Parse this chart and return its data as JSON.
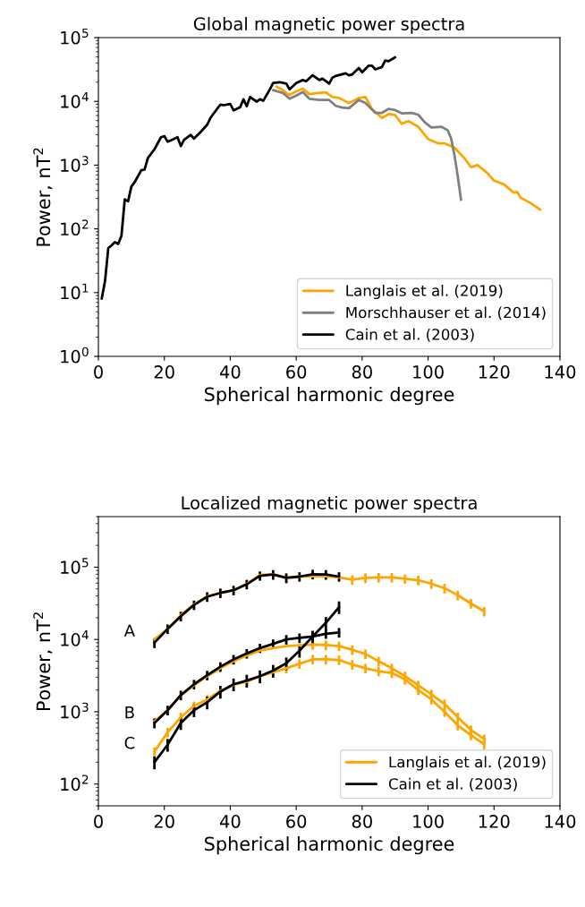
{
  "chart_data": [
    {
      "type": "line",
      "title": "Global magnetic power spectra",
      "xlabel": "Spherical harmonic degree",
      "ylabel": "Power, nT$^{2}$",
      "log": true,
      "legend": "bottom right",
      "xlim": [
        0,
        140
      ],
      "xticks": [
        0,
        20,
        40,
        60,
        80,
        100,
        120,
        140
      ],
      "ylim": [
        1,
        100000
      ],
      "yticks": [
        {
          "value": 1,
          "label": "10$^{0}$"
        },
        {
          "value": 10,
          "label": "10$^{1}$"
        },
        {
          "value": 100,
          "label": "10$^{2}$"
        },
        {
          "value": 1000,
          "label": "10$^{3}$"
        },
        {
          "value": 10000,
          "label": "10$^{4}$"
        },
        {
          "value": 100000,
          "label": "10$^{5}$"
        }
      ],
      "series": [
        {
          "name": "Langlais et al. (2019)",
          "color": "#ffa500",
          "x": [
            54,
            56,
            57,
            58,
            60,
            62,
            64,
            66,
            69,
            71,
            73,
            76,
            79,
            81,
            83,
            86,
            88,
            90,
            92,
            94,
            97,
            100,
            103,
            105,
            108,
            111,
            113,
            115,
            118,
            120,
            123,
            126,
            127,
            128,
            131,
            134
          ],
          "values": [
            17000,
            15000,
            13500,
            12600,
            14400,
            15800,
            13000,
            13400,
            13800,
            11700,
            11300,
            9400,
            11300,
            11700,
            7600,
            5500,
            6300,
            6100,
            4450,
            4900,
            4000,
            2570,
            2200,
            2200,
            1870,
            1290,
            930,
            1000,
            750,
            570,
            500,
            370,
            380,
            310,
            255,
            200
          ]
        },
        {
          "name": "Morschhauser et al. (2014)",
          "color": "#808080",
          "x": [
            53,
            56,
            58,
            60,
            62,
            64,
            67,
            70,
            72,
            74,
            76,
            79,
            81,
            84,
            86,
            88,
            90,
            92,
            95,
            97,
            99,
            101,
            104,
            106,
            107,
            108,
            109,
            110
          ],
          "values": [
            15000,
            13500,
            11000,
            12300,
            14000,
            11000,
            10500,
            10500,
            8500,
            8000,
            7800,
            10500,
            9400,
            6600,
            6600,
            7600,
            7300,
            6500,
            6600,
            6200,
            4700,
            3900,
            4000,
            3500,
            2600,
            1440,
            670,
            285
          ]
        },
        {
          "name": "Cain et al. (2003)",
          "color": "#000000",
          "x": [
            1,
            2,
            3,
            4,
            5,
            6,
            7,
            8,
            9,
            10,
            11,
            13,
            14,
            15,
            17,
            19,
            20,
            21,
            22,
            24,
            25,
            26,
            28,
            29,
            31,
            33,
            34,
            35,
            37,
            38,
            40,
            41,
            43,
            44,
            45,
            46,
            48,
            49,
            50,
            52,
            53,
            55,
            57,
            58,
            60,
            62,
            63,
            65,
            67,
            68,
            70,
            71,
            72,
            75,
            76,
            77,
            79,
            80,
            82,
            83,
            84,
            86,
            87,
            88,
            90
          ],
          "values": [
            8,
            15,
            50,
            55,
            62,
            58,
            78,
            290,
            270,
            460,
            540,
            830,
            850,
            1290,
            1770,
            2740,
            2850,
            2330,
            2450,
            2740,
            1990,
            2500,
            2970,
            2600,
            3300,
            4300,
            5500,
            6500,
            8900,
            8700,
            9100,
            7200,
            8100,
            10800,
            8400,
            11700,
            9900,
            10800,
            10200,
            15400,
            19400,
            20000,
            19000,
            15400,
            19400,
            21600,
            20700,
            25700,
            21600,
            22700,
            19000,
            23600,
            25000,
            27600,
            25600,
            26500,
            33300,
            28600,
            36300,
            36300,
            31700,
            34500,
            43600,
            42600,
            49000
          ]
        }
      ]
    },
    {
      "type": "line",
      "title": "Localized magnetic power spectra",
      "xlabel": "Spherical harmonic degree",
      "ylabel": "Power, nT$^{2}$",
      "log": true,
      "legend": "bottom right",
      "xlim": [
        0,
        140
      ],
      "xticks": [
        0,
        20,
        40,
        60,
        80,
        100,
        120,
        140
      ],
      "ylim": [
        50,
        500000
      ],
      "yticks": [
        {
          "value": 100,
          "label": "10$^{2}$"
        },
        {
          "value": 1000,
          "label": "10$^{3}$"
        },
        {
          "value": 10000,
          "label": "10$^{4}$"
        },
        {
          "value": 100000,
          "label": "10$^{5}$"
        }
      ],
      "annotations": [
        "A",
        "B",
        "C"
      ],
      "series": [
        {
          "name": "Langlais et al. (2019)",
          "color": "#ffa500",
          "x": [
            17,
            21,
            25,
            29,
            33,
            37,
            41,
            45,
            49,
            53,
            57,
            61,
            65,
            69,
            73,
            77,
            81,
            85,
            89,
            93,
            97,
            101,
            105,
            109,
            113,
            117
          ],
          "values": [
            10000,
            14000,
            21800,
            30500,
            39600,
            44000,
            48000,
            59000,
            78000,
            80000,
            71000,
            74000,
            75000,
            75000,
            72000,
            67000,
            71000,
            72000,
            72000,
            69000,
            66000,
            59000,
            51000,
            41000,
            31500,
            24500
          ],
          "errors": [
            null,
            null,
            null,
            null,
            null,
            null,
            null,
            null,
            null,
            null,
            null,
            null,
            null,
            null,
            null,
            10000,
            11000,
            11000,
            11000,
            10000,
            9900,
            8900,
            7700,
            6200,
            4700,
            3700
          ]
        },
        {
          "color": "#ffa500",
          "x": [
            17,
            21,
            25,
            29,
            33,
            37,
            41,
            45,
            49,
            53,
            57,
            61,
            65,
            69,
            73,
            77,
            81,
            85,
            89,
            93,
            97,
            101,
            105,
            109,
            113,
            117
          ],
          "values": [
            740,
            1050,
            1700,
            2330,
            3100,
            4000,
            5000,
            6000,
            7000,
            7600,
            8100,
            8300,
            8500,
            8400,
            8100,
            7200,
            6300,
            5000,
            4000,
            3100,
            2330,
            1750,
            1280,
            840,
            560,
            420
          ],
          "errors": [
            null,
            null,
            null,
            null,
            null,
            null,
            null,
            null,
            null,
            null,
            null,
            null,
            1300,
            1300,
            1200,
            1100,
            950,
            750,
            600,
            470,
            350,
            260,
            190,
            130,
            84,
            63
          ]
        },
        {
          "color": "#ffa500",
          "x": [
            17,
            21,
            25,
            29,
            33,
            37,
            41,
            45,
            49,
            53,
            57,
            61,
            65,
            69,
            73,
            77,
            81,
            85,
            89,
            93,
            97,
            101,
            105,
            109,
            113,
            117
          ],
          "values": [
            280,
            520,
            840,
            1200,
            1480,
            1950,
            2350,
            2600,
            3100,
            3500,
            4000,
            4600,
            5300,
            5300,
            5200,
            4500,
            4000,
            3650,
            3450,
            2800,
            2000,
            1480,
            1000,
            650,
            475,
            355
          ],
          "errors": [
            42,
            78,
            130,
            180,
            220,
            null,
            null,
            null,
            null,
            null,
            600,
            690,
            800,
            800,
            780,
            680,
            600,
            550,
            520,
            420,
            300,
            220,
            150,
            98,
            71,
            53
          ]
        },
        {
          "name": "Cain et al. (2003)",
          "color": "#000000",
          "x": [
            17,
            21,
            25,
            29,
            33,
            37,
            41,
            45,
            49,
            53,
            57,
            61,
            65,
            69,
            73
          ],
          "values": [
            9000,
            14000,
            21000,
            30000,
            39000,
            44000,
            48000,
            58000,
            76000,
            79000,
            71000,
            74000,
            80000,
            79000,
            74000
          ],
          "errors": [
            1400,
            2100,
            3200,
            4500,
            5900,
            6600,
            7200,
            8700,
            11000,
            12000,
            11000,
            11000,
            12000,
            12000,
            11000
          ]
        },
        {
          "color": "#000000",
          "x": [
            17,
            21,
            25,
            29,
            33,
            37,
            41,
            45,
            49,
            53,
            57,
            61,
            65,
            69,
            73
          ],
          "values": [
            700,
            1050,
            1700,
            2400,
            3200,
            4200,
            5300,
            6400,
            7600,
            8700,
            10000,
            10500,
            11000,
            12000,
            12500
          ],
          "errors": [
            110,
            160,
            260,
            360,
            480,
            630,
            800,
            960,
            1100,
            1300,
            1500,
            1600,
            1700,
            1800,
            1900
          ]
        },
        {
          "color": "#000000",
          "x": [
            17,
            21,
            25,
            29,
            33,
            37,
            41,
            45,
            49,
            53,
            57,
            61,
            65,
            69,
            73
          ],
          "values": [
            200,
            350,
            700,
            1050,
            1350,
            1900,
            2400,
            2700,
            3100,
            3700,
            4700,
            7000,
            11000,
            17000,
            28000
          ],
          "errors": [
            40,
            70,
            140,
            210,
            270,
            380,
            480,
            540,
            620,
            740,
            940,
            1400,
            2200,
            3400,
            5600
          ]
        }
      ]
    }
  ]
}
